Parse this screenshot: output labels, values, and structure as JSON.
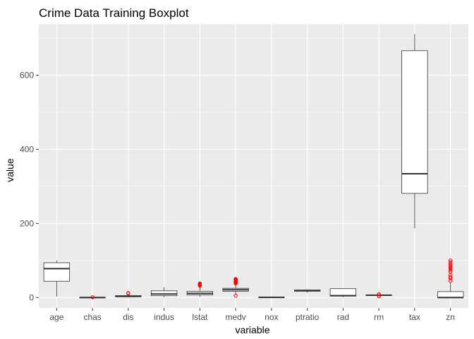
{
  "chart_data": {
    "type": "boxplot",
    "title": "Crime Data Training Boxplot",
    "xlabel": "variable",
    "ylabel": "value",
    "ylim": [
      -28,
      738
    ],
    "yticks": [
      0,
      200,
      400,
      600
    ],
    "grid": true,
    "colors": {
      "panel": "#ebebeb",
      "grid_major": "#ffffff",
      "box_fill": "#ffffff",
      "box_line": "#333333",
      "outlier": "#ff0000"
    },
    "categories": [
      "age",
      "chas",
      "dis",
      "indus",
      "lstat",
      "medv",
      "nox",
      "ptratio",
      "rad",
      "rm",
      "tax",
      "zn"
    ],
    "boxes": [
      {
        "variable": "age",
        "min": 3,
        "q1": 44,
        "median": 78,
        "q3": 94,
        "max": 100,
        "outliers": []
      },
      {
        "variable": "chas",
        "min": 0,
        "q1": 0,
        "median": 0,
        "q3": 0,
        "max": 0,
        "outliers": [
          1
        ]
      },
      {
        "variable": "dis",
        "min": 1,
        "q1": 2,
        "median": 3.2,
        "q3": 5.2,
        "max": 10,
        "outliers": [
          11,
          12
        ]
      },
      {
        "variable": "indus",
        "min": 0.5,
        "q1": 5,
        "median": 9.7,
        "q3": 18.1,
        "max": 27.7,
        "outliers": []
      },
      {
        "variable": "lstat",
        "min": 2,
        "q1": 7,
        "median": 11.3,
        "q3": 17,
        "max": 31,
        "outliers": [
          32,
          33,
          34,
          35,
          36,
          37,
          38
        ]
      },
      {
        "variable": "medv",
        "min": 7,
        "q1": 17,
        "median": 21,
        "q3": 25,
        "max": 37,
        "outliers": [
          5,
          38,
          39,
          41,
          42,
          43,
          44,
          45,
          46,
          47,
          48,
          49,
          50
        ]
      },
      {
        "variable": "nox",
        "min": 0.4,
        "q1": 0.45,
        "median": 0.54,
        "q3": 0.62,
        "max": 0.87,
        "outliers": []
      },
      {
        "variable": "ptratio",
        "min": 13,
        "q1": 17,
        "median": 19,
        "q3": 20.2,
        "max": 22,
        "outliers": []
      },
      {
        "variable": "rad",
        "min": 1,
        "q1": 4,
        "median": 5,
        "q3": 24,
        "max": 24,
        "outliers": []
      },
      {
        "variable": "rm",
        "min": 4.7,
        "q1": 5.9,
        "median": 6.2,
        "q3": 6.6,
        "max": 7.7,
        "outliers": [
          3.6,
          3.9,
          8.2,
          8.5,
          8.7
        ]
      },
      {
        "variable": "tax",
        "min": 187,
        "q1": 281,
        "median": 334,
        "q3": 666,
        "max": 711,
        "outliers": []
      },
      {
        "variable": "zn",
        "min": 0,
        "q1": 0,
        "median": 0,
        "q3": 16,
        "max": 40,
        "outliers": [
          45,
          52,
          55,
          60,
          70,
          75,
          80,
          82,
          85,
          90,
          95,
          100
        ]
      }
    ]
  }
}
